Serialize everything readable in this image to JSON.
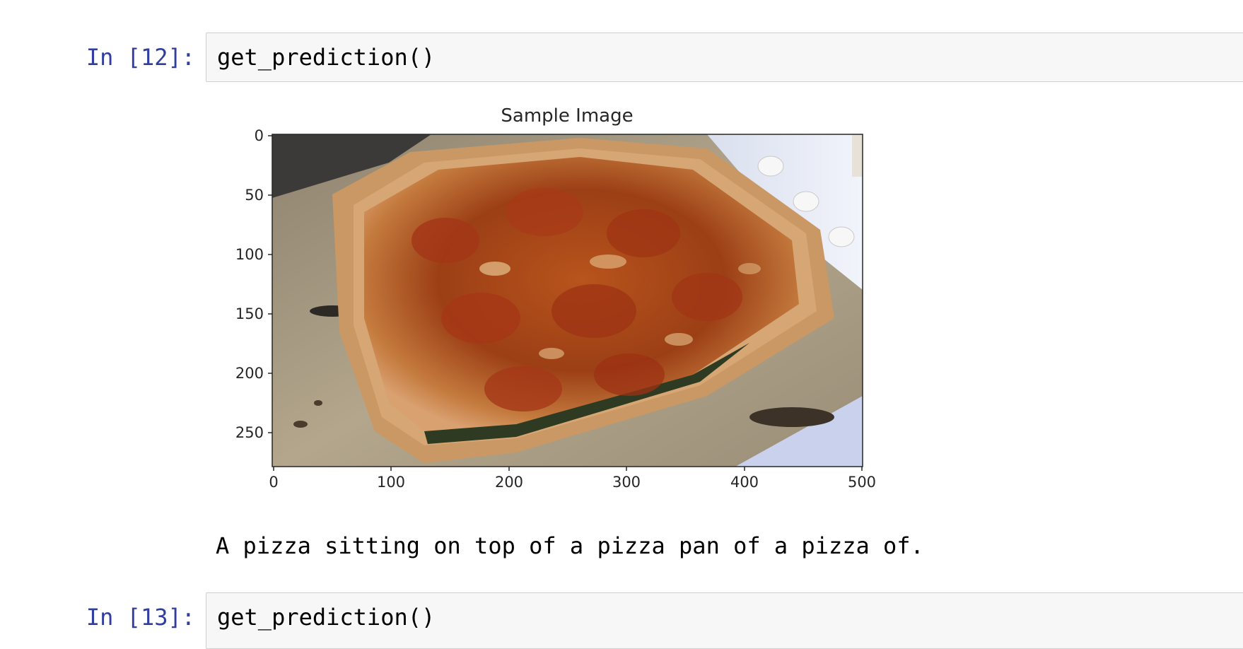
{
  "cells": [
    {
      "prompt": "In [12]:",
      "code": "get_prediction()"
    },
    {
      "prompt": "In [13]:",
      "code": "get_prediction()"
    }
  ],
  "output": {
    "caption": "A pizza sitting on top of a pizza pan of a pizza of."
  },
  "figure": {
    "title": "Sample Image",
    "image_subject": "photo of baked square pizza on a pan",
    "chart_data": {
      "type": "image",
      "title": "Sample Image",
      "xlim": [
        0,
        500
      ],
      "ylim": [
        280,
        0
      ],
      "xticks": [
        "0",
        "100",
        "200",
        "300",
        "400",
        "500"
      ],
      "yticks": [
        "0",
        "50",
        "100",
        "150",
        "200",
        "250"
      ]
    }
  },
  "colors": {
    "prompt": "#303f9f",
    "cell_bg": "#f7f7f7",
    "cell_border": "#cfcfcf"
  }
}
